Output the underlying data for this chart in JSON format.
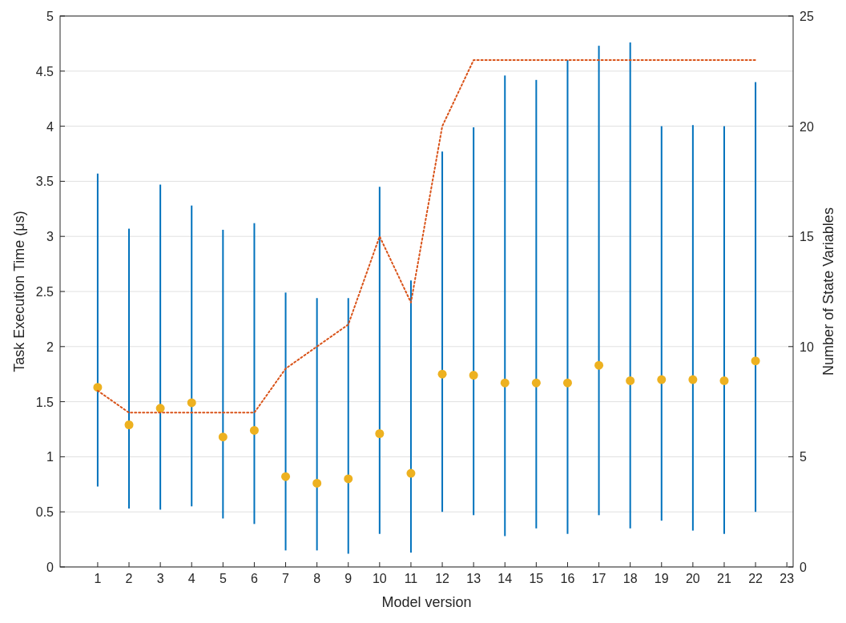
{
  "chart_data": {
    "type": "bar",
    "xlabel": "Model version",
    "ylabel": "Task Execution Time (μs)",
    "y2label": "Number of State Variables",
    "xlim": [
      -0.2,
      23.2
    ],
    "xticks": [
      1,
      2,
      3,
      4,
      5,
      6,
      7,
      8,
      9,
      10,
      11,
      12,
      13,
      14,
      15,
      16,
      17,
      18,
      19,
      20,
      21,
      22,
      23
    ],
    "ylim": [
      0,
      5
    ],
    "yticks": [
      0,
      0.5,
      1,
      1.5,
      2,
      2.5,
      3,
      3.5,
      4,
      4.5,
      5
    ],
    "y2lim": [
      0,
      25
    ],
    "y2ticks": [
      0,
      5,
      10,
      15,
      20,
      25
    ],
    "grid": "y",
    "series": [
      {
        "color": "#0072bd",
        "x": [
          1,
          2,
          3,
          4,
          5,
          6,
          7,
          8,
          9,
          10,
          11,
          12,
          13,
          14,
          15,
          16,
          17,
          18,
          19,
          20,
          21,
          22
        ],
        "base": [
          0.73,
          0.53,
          0.52,
          0.55,
          0.44,
          0.39,
          0.15,
          0.15,
          0.12,
          0.3,
          0.13,
          0.5,
          0.47,
          0.28,
          0.35,
          0.3,
          0.47,
          0.35,
          0.42,
          0.33,
          0.3,
          0.5
        ],
        "values": [
          2.84,
          2.54,
          2.95,
          2.73,
          2.62,
          2.73,
          2.34,
          2.29,
          2.32,
          3.15,
          2.47,
          3.27,
          3.52,
          4.18,
          4.07,
          4.3,
          4.26,
          4.41,
          3.58,
          3.68,
          3.7,
          3.9
        ]
      },
      {
        "type": "scatter",
        "color": "#edb120",
        "marker": "circle",
        "x": [
          1,
          2,
          3,
          4,
          5,
          6,
          7,
          8,
          9,
          10,
          11,
          12,
          13,
          14,
          15,
          16,
          17,
          18,
          19,
          20,
          21,
          22
        ],
        "values": [
          1.63,
          1.29,
          1.44,
          1.49,
          1.18,
          1.24,
          0.82,
          0.76,
          0.8,
          1.21,
          0.85,
          1.75,
          1.74,
          1.67,
          1.67,
          1.67,
          1.83,
          1.69,
          1.7,
          1.7,
          1.69,
          1.87
        ]
      },
      {
        "type": "line",
        "axis": "y2",
        "color": "#d95319",
        "line_style": "dotted",
        "x": [
          1,
          2,
          3,
          4,
          5,
          6,
          7,
          8,
          9,
          10,
          11,
          12,
          13,
          14,
          15,
          16,
          17,
          18,
          19,
          20,
          21,
          22
        ],
        "values": [
          8,
          7,
          7,
          7,
          7,
          7,
          9,
          10,
          11,
          15,
          12,
          20,
          23,
          23,
          23,
          23,
          23,
          23,
          23,
          23,
          23,
          23
        ]
      }
    ]
  }
}
